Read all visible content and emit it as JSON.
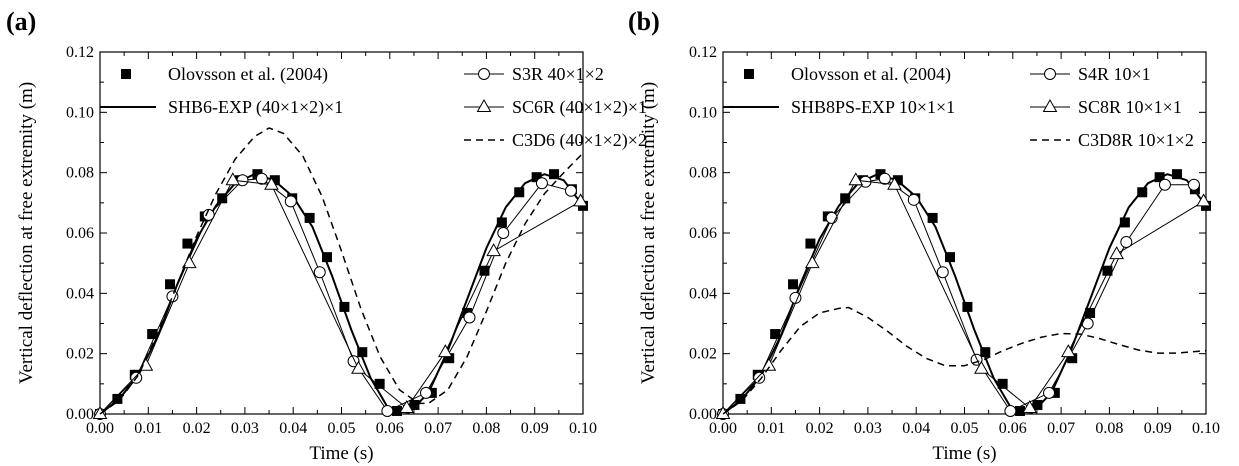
{
  "chart_data": [
    {
      "panel_label": "(a)",
      "type": "line",
      "xlabel": "Time (s)",
      "ylabel": "Vertical deflection at free extremity (m)",
      "xlim": [
        0.0,
        0.1
      ],
      "ylim": [
        0.0,
        0.12
      ],
      "x_ticks": [
        "0.00",
        "0.01",
        "0.02",
        "0.03",
        "0.04",
        "0.05",
        "0.06",
        "0.07",
        "0.08",
        "0.09",
        "0.10"
      ],
      "y_ticks": [
        "0.00",
        "0.02",
        "0.04",
        "0.06",
        "0.08",
        "0.10",
        "0.12"
      ],
      "grid": false,
      "legend": {
        "placement": "top",
        "columns": 2
      },
      "series": [
        {
          "name": "Olovsson et al. (2004)",
          "style": "filled-square-markers",
          "points": [
            [
              0.0,
              0.0
            ],
            [
              0.0036,
              0.005
            ],
            [
              0.0072,
              0.013
            ],
            [
              0.0108,
              0.0265
            ],
            [
              0.0145,
              0.043
            ],
            [
              0.0181,
              0.0565
            ],
            [
              0.0217,
              0.0655
            ],
            [
              0.0253,
              0.0715
            ],
            [
              0.029,
              0.0775
            ],
            [
              0.0326,
              0.0795
            ],
            [
              0.0362,
              0.0775
            ],
            [
              0.0398,
              0.0715
            ],
            [
              0.0434,
              0.065
            ],
            [
              0.047,
              0.052
            ],
            [
              0.0506,
              0.0355
            ],
            [
              0.0543,
              0.0205
            ],
            [
              0.0579,
              0.01
            ],
            [
              0.0615,
              0.001
            ],
            [
              0.0651,
              0.003
            ],
            [
              0.0687,
              0.007
            ],
            [
              0.0723,
              0.0185
            ],
            [
              0.076,
              0.0335
            ],
            [
              0.0796,
              0.0475
            ],
            [
              0.0832,
              0.0635
            ],
            [
              0.0868,
              0.0735
            ],
            [
              0.0904,
              0.0785
            ],
            [
              0.094,
              0.0795
            ],
            [
              0.0977,
              0.0745
            ],
            [
              0.1,
              0.069
            ]
          ]
        },
        {
          "name": "SHB6-EXP (40×1×2)×1",
          "style": "solid",
          "points": [
            [
              0.0,
              0.0
            ],
            [
              0.004,
              0.005
            ],
            [
              0.008,
              0.013
            ],
            [
              0.012,
              0.026
            ],
            [
              0.016,
              0.043
            ],
            [
              0.02,
              0.058
            ],
            [
              0.024,
              0.069
            ],
            [
              0.028,
              0.0765
            ],
            [
              0.032,
              0.0795
            ],
            [
              0.036,
              0.0775
            ],
            [
              0.04,
              0.072
            ],
            [
              0.044,
              0.062
            ],
            [
              0.048,
              0.046
            ],
            [
              0.052,
              0.028
            ],
            [
              0.056,
              0.012
            ],
            [
              0.06,
              0.001
            ],
            [
              0.064,
              0.0005
            ],
            [
              0.068,
              0.007
            ],
            [
              0.072,
              0.021
            ],
            [
              0.076,
              0.038
            ],
            [
              0.08,
              0.055
            ],
            [
              0.084,
              0.0685
            ],
            [
              0.088,
              0.0765
            ],
            [
              0.092,
              0.0795
            ],
            [
              0.096,
              0.0775
            ],
            [
              0.1,
              0.069
            ]
          ]
        },
        {
          "name": "S3R 40×1×2",
          "style": "open-circle-markers",
          "points": [
            [
              0.0,
              0.0
            ],
            [
              0.0075,
              0.012
            ],
            [
              0.015,
              0.039
            ],
            [
              0.0225,
              0.066
            ],
            [
              0.0295,
              0.0775
            ],
            [
              0.0335,
              0.078
            ],
            [
              0.0395,
              0.0705
            ],
            [
              0.0455,
              0.047
            ],
            [
              0.0525,
              0.0175
            ],
            [
              0.0595,
              0.001
            ],
            [
              0.0675,
              0.007
            ],
            [
              0.0765,
              0.032
            ],
            [
              0.0835,
              0.06
            ],
            [
              0.0915,
              0.0765
            ],
            [
              0.0975,
              0.074
            ]
          ]
        },
        {
          "name": "SC6R (40×1×2)×1",
          "style": "open-triangle-markers",
          "points": [
            [
              0.0,
              0.0
            ],
            [
              0.0095,
              0.016
            ],
            [
              0.0185,
              0.05
            ],
            [
              0.0275,
              0.0775
            ],
            [
              0.0355,
              0.076
            ],
            [
              0.0535,
              0.015
            ],
            [
              0.0635,
              0.002
            ],
            [
              0.0715,
              0.0205
            ],
            [
              0.0815,
              0.054
            ],
            [
              0.0995,
              0.0705
            ]
          ]
        },
        {
          "name": "C3D6 (40×1×2)×2",
          "style": "dashed",
          "points": [
            [
              0.0,
              0.0
            ],
            [
              0.004,
              0.0045
            ],
            [
              0.008,
              0.013
            ],
            [
              0.012,
              0.027
            ],
            [
              0.016,
              0.043
            ],
            [
              0.02,
              0.059
            ],
            [
              0.024,
              0.073
            ],
            [
              0.028,
              0.0845
            ],
            [
              0.032,
              0.092
            ],
            [
              0.035,
              0.0948
            ],
            [
              0.038,
              0.093
            ],
            [
              0.042,
              0.0855
            ],
            [
              0.046,
              0.072
            ],
            [
              0.05,
              0.054
            ],
            [
              0.054,
              0.035
            ],
            [
              0.058,
              0.019
            ],
            [
              0.062,
              0.008
            ],
            [
              0.066,
              0.0035
            ],
            [
              0.068,
              0.0035
            ],
            [
              0.072,
              0.008
            ],
            [
              0.076,
              0.019
            ],
            [
              0.08,
              0.034
            ],
            [
              0.084,
              0.05
            ],
            [
              0.088,
              0.063
            ],
            [
              0.092,
              0.073
            ],
            [
              0.096,
              0.08
            ],
            [
              0.1,
              0.0865
            ]
          ]
        }
      ]
    },
    {
      "panel_label": "(b)",
      "type": "line",
      "xlabel": "Time (s)",
      "ylabel": "Vertical deflection at free extremity (m)",
      "xlim": [
        0.0,
        0.1
      ],
      "ylim": [
        0.0,
        0.12
      ],
      "x_ticks": [
        "0.00",
        "0.01",
        "0.02",
        "0.03",
        "0.04",
        "0.05",
        "0.06",
        "0.07",
        "0.08",
        "0.09",
        "0.10"
      ],
      "y_ticks": [
        "0.00",
        "0.02",
        "0.04",
        "0.06",
        "0.08",
        "0.10",
        "0.12"
      ],
      "grid": false,
      "legend": {
        "placement": "top",
        "columns": 2
      },
      "series": [
        {
          "name": "Olovsson et al. (2004)",
          "style": "filled-square-markers",
          "points": [
            [
              0.0,
              0.0
            ],
            [
              0.0036,
              0.005
            ],
            [
              0.0072,
              0.013
            ],
            [
              0.0108,
              0.0265
            ],
            [
              0.0145,
              0.043
            ],
            [
              0.0181,
              0.0565
            ],
            [
              0.0217,
              0.0655
            ],
            [
              0.0253,
              0.0715
            ],
            [
              0.029,
              0.0775
            ],
            [
              0.0326,
              0.0795
            ],
            [
              0.0362,
              0.0775
            ],
            [
              0.0398,
              0.0715
            ],
            [
              0.0434,
              0.065
            ],
            [
              0.047,
              0.052
            ],
            [
              0.0506,
              0.0355
            ],
            [
              0.0543,
              0.0205
            ],
            [
              0.0579,
              0.01
            ],
            [
              0.0615,
              0.001
            ],
            [
              0.0651,
              0.003
            ],
            [
              0.0687,
              0.007
            ],
            [
              0.0723,
              0.0185
            ],
            [
              0.076,
              0.0335
            ],
            [
              0.0796,
              0.0475
            ],
            [
              0.0832,
              0.0635
            ],
            [
              0.0868,
              0.0735
            ],
            [
              0.0904,
              0.0785
            ],
            [
              0.094,
              0.0795
            ],
            [
              0.0977,
              0.0745
            ],
            [
              0.1,
              0.069
            ]
          ]
        },
        {
          "name": "SHB8PS-EXP 10×1×1",
          "style": "solid",
          "points": [
            [
              0.0,
              0.0
            ],
            [
              0.004,
              0.005
            ],
            [
              0.008,
              0.013
            ],
            [
              0.012,
              0.026
            ],
            [
              0.016,
              0.043
            ],
            [
              0.02,
              0.058
            ],
            [
              0.024,
              0.069
            ],
            [
              0.028,
              0.0765
            ],
            [
              0.032,
              0.0795
            ],
            [
              0.036,
              0.0775
            ],
            [
              0.04,
              0.072
            ],
            [
              0.044,
              0.062
            ],
            [
              0.048,
              0.046
            ],
            [
              0.052,
              0.028
            ],
            [
              0.056,
              0.012
            ],
            [
              0.06,
              0.001
            ],
            [
              0.064,
              0.0005
            ],
            [
              0.068,
              0.007
            ],
            [
              0.072,
              0.021
            ],
            [
              0.076,
              0.038
            ],
            [
              0.08,
              0.055
            ],
            [
              0.084,
              0.0685
            ],
            [
              0.088,
              0.0765
            ],
            [
              0.092,
              0.0795
            ],
            [
              0.096,
              0.0775
            ],
            [
              0.1,
              0.069
            ]
          ]
        },
        {
          "name": "S4R 10×1",
          "style": "open-circle-markers",
          "points": [
            [
              0.0,
              0.0
            ],
            [
              0.0075,
              0.012
            ],
            [
              0.015,
              0.0385
            ],
            [
              0.0225,
              0.065
            ],
            [
              0.0295,
              0.077
            ],
            [
              0.0335,
              0.078
            ],
            [
              0.0395,
              0.071
            ],
            [
              0.0455,
              0.047
            ],
            [
              0.0525,
              0.018
            ],
            [
              0.0595,
              0.001
            ],
            [
              0.0675,
              0.007
            ],
            [
              0.0755,
              0.03
            ],
            [
              0.0835,
              0.057
            ],
            [
              0.0915,
              0.076
            ],
            [
              0.0975,
              0.076
            ]
          ]
        },
        {
          "name": "SC8R 10×1×1",
          "style": "open-triangle-markers",
          "points": [
            [
              0.0,
              0.0
            ],
            [
              0.0095,
              0.016
            ],
            [
              0.0185,
              0.05
            ],
            [
              0.0275,
              0.0775
            ],
            [
              0.0355,
              0.076
            ],
            [
              0.0535,
              0.015
            ],
            [
              0.0635,
              0.002
            ],
            [
              0.0715,
              0.0205
            ],
            [
              0.0815,
              0.053
            ],
            [
              0.0995,
              0.0705
            ]
          ]
        },
        {
          "name": "C3D8R 10×1×2",
          "style": "dashed",
          "points": [
            [
              0.0,
              0.0
            ],
            [
              0.004,
              0.0045
            ],
            [
              0.008,
              0.012
            ],
            [
              0.012,
              0.021
            ],
            [
              0.016,
              0.029
            ],
            [
              0.02,
              0.0335
            ],
            [
              0.024,
              0.035
            ],
            [
              0.026,
              0.0353
            ],
            [
              0.03,
              0.032
            ],
            [
              0.034,
              0.0275
            ],
            [
              0.038,
              0.0225
            ],
            [
              0.042,
              0.0185
            ],
            [
              0.046,
              0.016
            ],
            [
              0.05,
              0.016
            ],
            [
              0.054,
              0.018
            ],
            [
              0.058,
              0.021
            ],
            [
              0.062,
              0.0235
            ],
            [
              0.066,
              0.0255
            ],
            [
              0.07,
              0.0267
            ],
            [
              0.074,
              0.0265
            ],
            [
              0.078,
              0.025
            ],
            [
              0.082,
              0.023
            ],
            [
              0.086,
              0.0212
            ],
            [
              0.09,
              0.0202
            ],
            [
              0.094,
              0.0202
            ],
            [
              0.1,
              0.021
            ]
          ]
        }
      ]
    }
  ]
}
